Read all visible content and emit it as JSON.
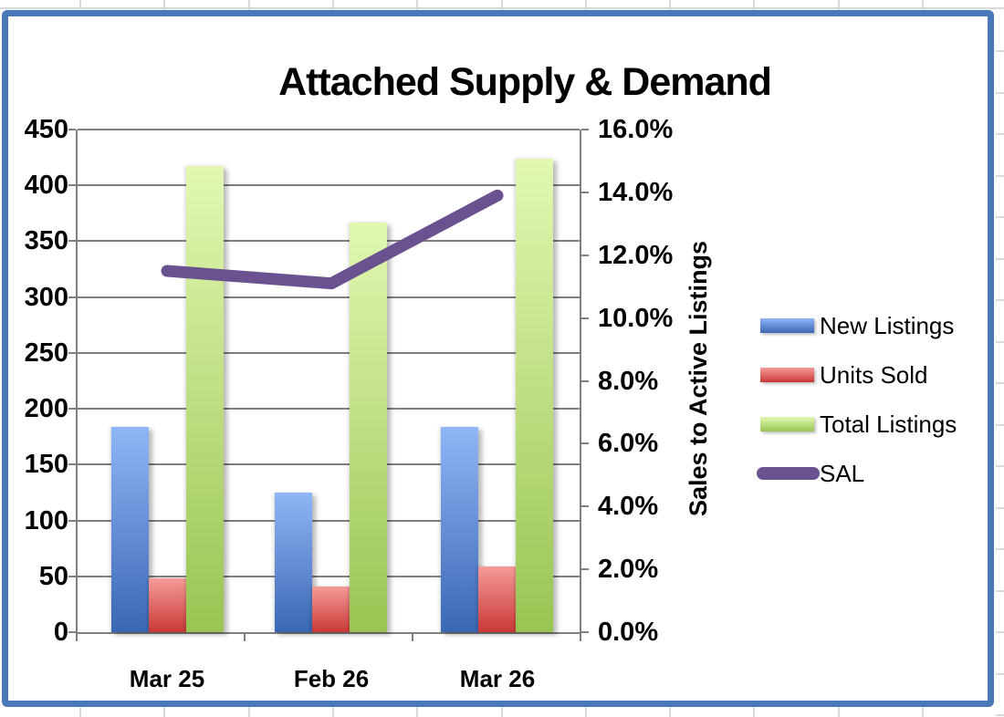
{
  "sheet": {
    "gridline_color": "#D9D9D9"
  },
  "chart_data": {
    "type": "combo",
    "title": "Attached Supply & Demand",
    "categories": [
      "Mar 25",
      "Feb 26",
      "Mar 26"
    ],
    "series": [
      {
        "name": "New Listings",
        "kind": "bar",
        "axis": "primary",
        "values": [
          184,
          125,
          184
        ],
        "fill_top": "#8FB6F6",
        "fill_bottom": "#3A67B4"
      },
      {
        "name": "Units Sold",
        "kind": "bar",
        "axis": "primary",
        "values": [
          48,
          41,
          59
        ],
        "fill_top": "#F59B99",
        "fill_bottom": "#C93936"
      },
      {
        "name": "Total Listings",
        "kind": "bar",
        "axis": "primary",
        "values": [
          417,
          367,
          424
        ],
        "fill_top": "#E2F8B2",
        "fill_bottom": "#99C553"
      },
      {
        "name": "SAL",
        "kind": "line",
        "axis": "secondary",
        "values": [
          11.5,
          11.1,
          13.9
        ],
        "color": "#6A5291"
      }
    ],
    "primary_axis": {
      "min": 0,
      "max": 450,
      "step": 50,
      "tick_labels": [
        "450",
        "400",
        "350",
        "300",
        "250",
        "200",
        "150",
        "100",
        "50",
        "0"
      ]
    },
    "secondary_axis": {
      "min": 0,
      "max": 16,
      "step": 2,
      "unit": "%",
      "title": "Sales to Active Listings",
      "tick_labels": [
        "16.0%",
        "14.0%",
        "12.0%",
        "10.0%",
        "8.0%",
        "6.0%",
        "4.0%",
        "2.0%",
        "0.0%"
      ]
    },
    "legend": {
      "position": "right",
      "entries": [
        "New Listings",
        "Units Sold",
        "Total Listings",
        "SAL"
      ]
    },
    "gridlines": "horizontal",
    "frame_border_color": "#4A78B8"
  }
}
